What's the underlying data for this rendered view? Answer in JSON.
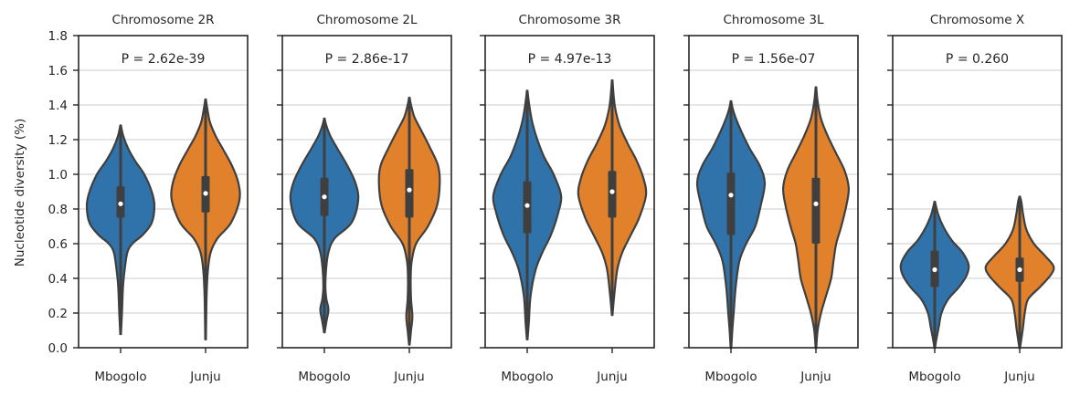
{
  "chart_data": {
    "type": "violin",
    "ylabel": "Nucleotide diversity (%)",
    "ylim": [
      0,
      1.8
    ],
    "yticks": [
      "0.0",
      "0.2",
      "0.4",
      "0.6",
      "0.8",
      "1.0",
      "1.2",
      "1.4",
      "1.6",
      "1.8"
    ],
    "grid": "horizontal",
    "categories": [
      "Mbogolo",
      "Junju"
    ],
    "colors": {
      "Mbogolo": "#2f73aa",
      "Junju": "#e1812c"
    },
    "panels": [
      {
        "title": "Chromosome 2R",
        "pvalue": "P = 2.62e-39",
        "violins": [
          {
            "group": "Mbogolo",
            "min": 0.08,
            "max": 1.28,
            "q1": 0.75,
            "median": 0.83,
            "q3": 0.93,
            "shape": [
              [
                0.08,
                0.01
              ],
              [
                0.2,
                0.04
              ],
              [
                0.35,
                0.07
              ],
              [
                0.45,
                0.12
              ],
              [
                0.55,
                0.2
              ],
              [
                0.6,
                0.35
              ],
              [
                0.65,
                0.65
              ],
              [
                0.72,
                0.92
              ],
              [
                0.82,
                1.0
              ],
              [
                0.9,
                0.92
              ],
              [
                1.0,
                0.7
              ],
              [
                1.08,
                0.42
              ],
              [
                1.15,
                0.22
              ],
              [
                1.22,
                0.08
              ],
              [
                1.28,
                0.01
              ]
            ]
          },
          {
            "group": "Junju",
            "min": 0.05,
            "max": 1.43,
            "q1": 0.78,
            "median": 0.89,
            "q3": 0.99,
            "shape": [
              [
                0.05,
                0.01
              ],
              [
                0.3,
                0.03
              ],
              [
                0.45,
                0.07
              ],
              [
                0.55,
                0.15
              ],
              [
                0.63,
                0.35
              ],
              [
                0.72,
                0.75
              ],
              [
                0.85,
                1.0
              ],
              [
                0.95,
                0.97
              ],
              [
                1.05,
                0.78
              ],
              [
                1.15,
                0.5
              ],
              [
                1.22,
                0.3
              ],
              [
                1.3,
                0.13
              ],
              [
                1.38,
                0.05
              ],
              [
                1.43,
                0.01
              ]
            ]
          }
        ]
      },
      {
        "title": "Chromosome 2L",
        "pvalue": "P = 2.86e-17",
        "violins": [
          {
            "group": "Mbogolo",
            "min": 0.09,
            "max": 1.32,
            "q1": 0.76,
            "median": 0.87,
            "q3": 0.98,
            "shape": [
              [
                0.09,
                0.01
              ],
              [
                0.15,
                0.06
              ],
              [
                0.22,
                0.12
              ],
              [
                0.28,
                0.06
              ],
              [
                0.35,
                0.03
              ],
              [
                0.45,
                0.05
              ],
              [
                0.55,
                0.12
              ],
              [
                0.63,
                0.3
              ],
              [
                0.72,
                0.8
              ],
              [
                0.85,
                1.0
              ],
              [
                0.95,
                0.92
              ],
              [
                1.05,
                0.68
              ],
              [
                1.15,
                0.38
              ],
              [
                1.22,
                0.18
              ],
              [
                1.28,
                0.06
              ],
              [
                1.32,
                0.01
              ]
            ]
          },
          {
            "group": "Junju",
            "min": 0.02,
            "max": 1.44,
            "q1": 0.75,
            "median": 0.91,
            "q3": 1.03,
            "shape": [
              [
                0.02,
                0.01
              ],
              [
                0.1,
                0.05
              ],
              [
                0.18,
                0.09
              ],
              [
                0.28,
                0.05
              ],
              [
                0.4,
                0.04
              ],
              [
                0.5,
                0.07
              ],
              [
                0.6,
                0.2
              ],
              [
                0.7,
                0.55
              ],
              [
                0.82,
                0.82
              ],
              [
                0.95,
                0.9
              ],
              [
                1.05,
                0.85
              ],
              [
                1.15,
                0.62
              ],
              [
                1.25,
                0.36
              ],
              [
                1.33,
                0.15
              ],
              [
                1.4,
                0.05
              ],
              [
                1.44,
                0.01
              ]
            ]
          }
        ]
      },
      {
        "title": "Chromosome 3R",
        "pvalue": "P = 4.97e-13",
        "violins": [
          {
            "group": "Mbogolo",
            "min": 0.05,
            "max": 1.48,
            "q1": 0.66,
            "median": 0.82,
            "q3": 0.96,
            "shape": [
              [
                0.05,
                0.01
              ],
              [
                0.15,
                0.05
              ],
              [
                0.3,
                0.1
              ],
              [
                0.45,
                0.25
              ],
              [
                0.55,
                0.45
              ],
              [
                0.65,
                0.7
              ],
              [
                0.78,
                0.92
              ],
              [
                0.88,
                1.0
              ],
              [
                1.0,
                0.78
              ],
              [
                1.1,
                0.5
              ],
              [
                1.2,
                0.3
              ],
              [
                1.3,
                0.15
              ],
              [
                1.4,
                0.06
              ],
              [
                1.48,
                0.01
              ]
            ]
          },
          {
            "group": "Junju",
            "min": 0.19,
            "max": 1.54,
            "q1": 0.75,
            "median": 0.9,
            "q3": 1.02,
            "shape": [
              [
                0.19,
                0.01
              ],
              [
                0.3,
                0.06
              ],
              [
                0.45,
                0.15
              ],
              [
                0.55,
                0.3
              ],
              [
                0.65,
                0.55
              ],
              [
                0.75,
                0.8
              ],
              [
                0.88,
                1.0
              ],
              [
                0.98,
                0.92
              ],
              [
                1.08,
                0.72
              ],
              [
                1.18,
                0.45
              ],
              [
                1.28,
                0.22
              ],
              [
                1.38,
                0.09
              ],
              [
                1.46,
                0.04
              ],
              [
                1.54,
                0.01
              ]
            ]
          }
        ]
      },
      {
        "title": "Chromosome 3L",
        "pvalue": "P = 1.56e-07",
        "violins": [
          {
            "group": "Mbogolo",
            "min": 0.0,
            "max": 1.42,
            "q1": 0.65,
            "median": 0.88,
            "q3": 1.01,
            "shape": [
              [
                0.0,
                0.01
              ],
              [
                0.1,
                0.04
              ],
              [
                0.2,
                0.08
              ],
              [
                0.35,
                0.14
              ],
              [
                0.5,
                0.25
              ],
              [
                0.6,
                0.45
              ],
              [
                0.7,
                0.72
              ],
              [
                0.82,
                0.88
              ],
              [
                0.95,
                1.0
              ],
              [
                1.05,
                0.85
              ],
              [
                1.15,
                0.55
              ],
              [
                1.25,
                0.3
              ],
              [
                1.33,
                0.13
              ],
              [
                1.38,
                0.05
              ],
              [
                1.42,
                0.01
              ]
            ]
          },
          {
            "group": "Junju",
            "min": 0.0,
            "max": 1.5,
            "q1": 0.6,
            "median": 0.83,
            "q3": 0.98,
            "shape": [
              [
                0.0,
                0.01
              ],
              [
                0.1,
                0.05
              ],
              [
                0.2,
                0.15
              ],
              [
                0.3,
                0.3
              ],
              [
                0.4,
                0.45
              ],
              [
                0.5,
                0.52
              ],
              [
                0.6,
                0.6
              ],
              [
                0.7,
                0.75
              ],
              [
                0.82,
                0.9
              ],
              [
                0.92,
                0.97
              ],
              [
                1.02,
                0.85
              ],
              [
                1.12,
                0.6
              ],
              [
                1.22,
                0.35
              ],
              [
                1.32,
                0.15
              ],
              [
                1.42,
                0.05
              ],
              [
                1.5,
                0.01
              ]
            ]
          }
        ]
      },
      {
        "title": "Chromosome X",
        "pvalue": "P = 0.260",
        "violins": [
          {
            "group": "Mbogolo",
            "min": 0.0,
            "max": 0.84,
            "q1": 0.35,
            "median": 0.45,
            "q3": 0.56,
            "shape": [
              [
                0.0,
                0.01
              ],
              [
                0.05,
                0.05
              ],
              [
                0.12,
                0.12
              ],
              [
                0.2,
                0.2
              ],
              [
                0.28,
                0.4
              ],
              [
                0.35,
                0.72
              ],
              [
                0.42,
                0.95
              ],
              [
                0.48,
                1.0
              ],
              [
                0.55,
                0.82
              ],
              [
                0.62,
                0.5
              ],
              [
                0.7,
                0.25
              ],
              [
                0.77,
                0.1
              ],
              [
                0.84,
                0.01
              ]
            ]
          },
          {
            "group": "Junju",
            "min": 0.0,
            "max": 0.87,
            "q1": 0.38,
            "median": 0.45,
            "q3": 0.52,
            "shape": [
              [
                0.0,
                0.01
              ],
              [
                0.05,
                0.05
              ],
              [
                0.12,
                0.1
              ],
              [
                0.2,
                0.15
              ],
              [
                0.28,
                0.25
              ],
              [
                0.35,
                0.6
              ],
              [
                0.42,
                0.92
              ],
              [
                0.47,
                1.0
              ],
              [
                0.53,
                0.75
              ],
              [
                0.6,
                0.42
              ],
              [
                0.68,
                0.2
              ],
              [
                0.77,
                0.1
              ],
              [
                0.84,
                0.05
              ],
              [
                0.87,
                0.01
              ]
            ]
          }
        ]
      }
    ]
  }
}
